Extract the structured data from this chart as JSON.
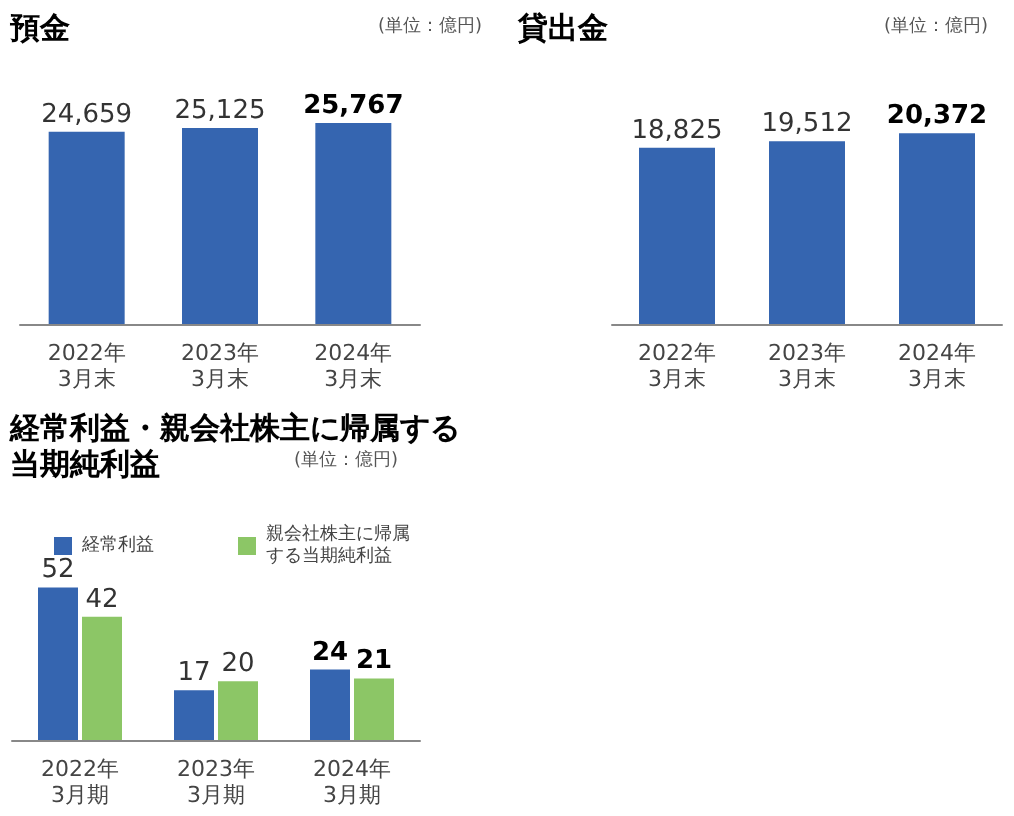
{
  "chart_data": [
    {
      "type": "bar",
      "title": "預金",
      "subtitle": "(単位：億円)",
      "categories": [
        "2022年\n3月末",
        "2023年\n3月末",
        "2024年\n3月末"
      ],
      "values": [
        24659,
        25125,
        25767
      ],
      "value_labels": [
        "24,659",
        "25,125",
        "25,767"
      ],
      "color": "#3565b0"
    },
    {
      "type": "bar",
      "title": "貸出金",
      "subtitle": "(単位：億円)",
      "categories": [
        "2022年\n3月末",
        "2023年\n3月末",
        "2024年\n3月末"
      ],
      "values": [
        18825,
        19512,
        20372
      ],
      "value_labels": [
        "18,825",
        "19,512",
        "20,372"
      ],
      "color": "#3565b0"
    },
    {
      "type": "bar",
      "title": "経常利益・親会社株主に帰属する当期純利益",
      "subtitle": "(単位：億円)",
      "categories": [
        "2022年\n3月期",
        "2023年\n3月期",
        "2024年\n3月期"
      ],
      "series": [
        {
          "name": "経常利益",
          "color": "#3565b0",
          "values": [
            52,
            17,
            24
          ]
        },
        {
          "name": "親会社株主に帰属する当期純利益",
          "color": "#8cc666",
          "values": [
            42,
            20,
            21
          ]
        }
      ],
      "data_labels": true,
      "legend": "top right"
    }
  ]
}
